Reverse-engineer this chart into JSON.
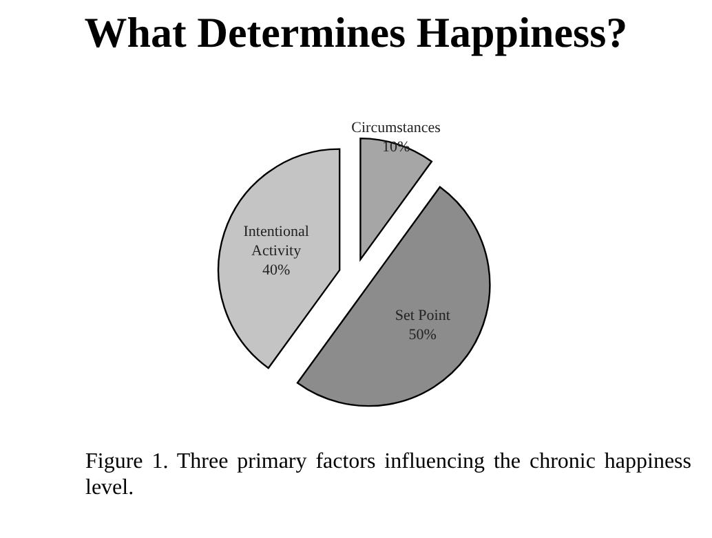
{
  "chart_data": {
    "type": "pie",
    "title": "What Determines Happiness?",
    "categories": [
      "Circumstances",
      "Set Point",
      "Intentional Activity"
    ],
    "values": [
      10,
      50,
      40
    ],
    "value_labels": [
      "10%",
      "50%",
      "40%"
    ],
    "colors": [
      "#a6a6a6",
      "#8c8c8c",
      "#c4c4c4"
    ],
    "legend": false,
    "annotations": [
      "Figure 1.  Three primary factors influencing the chronic happiness level."
    ]
  }
}
